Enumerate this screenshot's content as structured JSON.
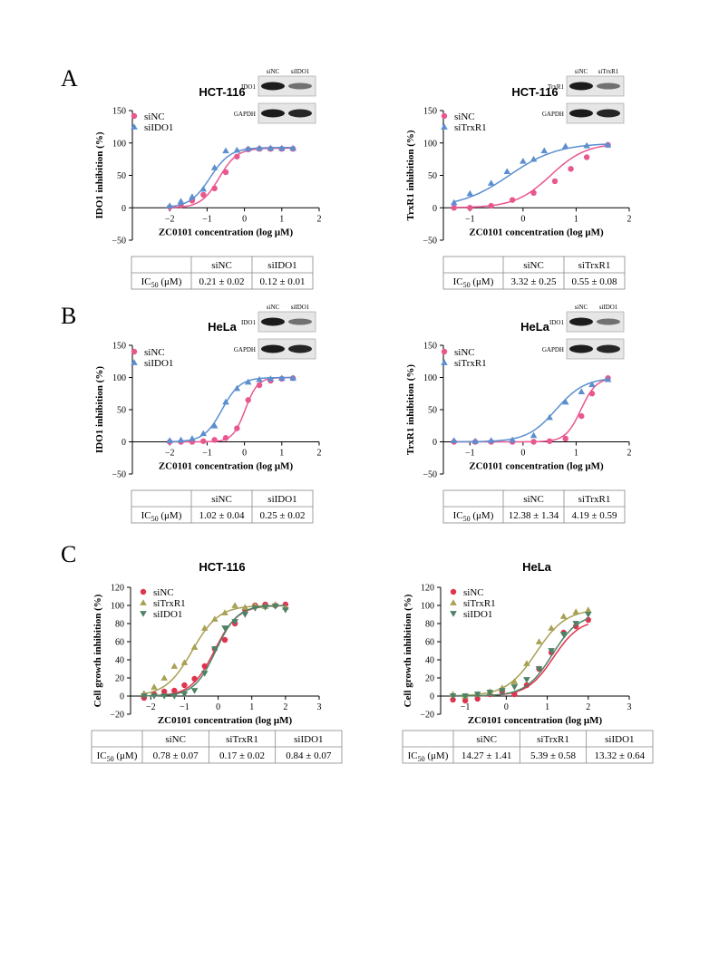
{
  "panel_labels": [
    "A",
    "B",
    "C"
  ],
  "blot_labels": {
    "ido1": "IDO1",
    "trxr1": "TrxR1",
    "gapdh": "GAPDH",
    "sinc": "siNC",
    "siido1": "siIDO1",
    "sitrxr1": "siTrxR1"
  },
  "table_header_label": "IC50 (μM)",
  "colors": {
    "siNC": "#e8578f",
    "siIDO1_AB": "#5b8fcf",
    "siTrxR1_AB": "#5b8fcf",
    "siNC_C": "#e0344e",
    "siTrxR1_C": "#a8a055",
    "siIDO1_C": "#4d8266"
  },
  "chart_data": [
    {
      "id": "A1",
      "type": "scatter",
      "title": "HCT-116",
      "xlabel": "ZC0101 concentration (log μM)",
      "ylabel": "IDO1 inhibition (%)",
      "xlim": [
        -3,
        2
      ],
      "ylim": [
        -50,
        150
      ],
      "xticks": [
        -2,
        -1,
        0,
        1,
        2
      ],
      "yticks": [
        -50,
        0,
        50,
        100,
        150
      ],
      "blot": {
        "cols": [
          "siNC",
          "siIDO1"
        ],
        "rows": [
          "IDO1",
          "GAPDH"
        ]
      },
      "series": [
        {
          "name": "siNC",
          "marker": "circle",
          "color": "#e8578f",
          "logIC50": -0.68,
          "hill": 1.8,
          "x": [
            -2,
            -1.7,
            -1.4,
            -1.1,
            -0.8,
            -0.5,
            -0.2,
            0.1,
            0.4,
            0.7,
            1.0,
            1.3
          ],
          "y": [
            1,
            4,
            11,
            20,
            30,
            55,
            79,
            90,
            91,
            91,
            91,
            91
          ]
        },
        {
          "name": "siIDO1",
          "marker": "triangle",
          "color": "#5b8fcf",
          "logIC50": -0.92,
          "hill": 1.6,
          "x": [
            -2,
            -1.7,
            -1.4,
            -1.1,
            -0.8,
            -0.5,
            -0.2,
            0.1,
            0.4,
            0.7,
            1.0,
            1.3
          ],
          "y": [
            3,
            10,
            17,
            29,
            62,
            88,
            89,
            91,
            92,
            92,
            92,
            92
          ]
        }
      ],
      "table": {
        "columns": [
          "siNC",
          "siIDO1"
        ],
        "values": [
          "0.21 ± 0.02",
          "0.12 ± 0.01"
        ]
      }
    },
    {
      "id": "A2",
      "type": "scatter",
      "title": "HCT-116",
      "xlabel": "ZC0101 concentration (log μM)",
      "ylabel": "TrxR1 inhibition (%)",
      "xlim": [
        -1.5,
        2
      ],
      "ylim": [
        -50,
        150
      ],
      "xticks": [
        -1,
        0,
        1,
        2
      ],
      "yticks": [
        -50,
        0,
        50,
        100,
        150
      ],
      "blot": {
        "cols": [
          "siNC",
          "siTrxR1"
        ],
        "rows": [
          "TrxR1",
          "GAPDH"
        ]
      },
      "series": [
        {
          "name": "siNC",
          "marker": "circle",
          "color": "#e8578f",
          "logIC50": 0.52,
          "hill": 1.3,
          "x": [
            -1.3,
            -1.0,
            -0.6,
            -0.2,
            0.2,
            0.6,
            0.9,
            1.2,
            1.6
          ],
          "y": [
            0,
            0,
            3,
            12,
            23,
            41,
            60,
            78,
            97
          ]
        },
        {
          "name": "siTrxR1",
          "marker": "triangle",
          "color": "#5b8fcf",
          "logIC50": -0.26,
          "hill": 0.95,
          "x": [
            -1.3,
            -1.0,
            -0.6,
            -0.3,
            0.0,
            0.2,
            0.4,
            0.8,
            1.2,
            1.6
          ],
          "y": [
            8,
            22,
            38,
            56,
            72,
            75,
            88,
            95,
            96,
            97
          ]
        }
      ],
      "table": {
        "columns": [
          "siNC",
          "siTrxR1"
        ],
        "values": [
          "3.32 ± 0.25",
          "0.55 ± 0.08"
        ]
      }
    },
    {
      "id": "B1",
      "type": "scatter",
      "title": "HeLa",
      "xlabel": "ZC0101 concentration (log μM)",
      "ylabel": "IDO1 inhibition (%)",
      "xlim": [
        -3,
        2
      ],
      "ylim": [
        -50,
        150
      ],
      "xticks": [
        -2,
        -1,
        0,
        1,
        2
      ],
      "yticks": [
        -50,
        0,
        50,
        100,
        150
      ],
      "blot": {
        "cols": [
          "siNC",
          "siIDO1"
        ],
        "rows": [
          "IDO1",
          "GAPDH"
        ]
      },
      "series": [
        {
          "name": "siNC",
          "marker": "circle",
          "color": "#e8578f",
          "logIC50": 0.02,
          "hill": 2.6,
          "x": [
            -2,
            -1.7,
            -1.4,
            -1.1,
            -0.8,
            -0.5,
            -0.2,
            0.1,
            0.4,
            0.7,
            1.0,
            1.3
          ],
          "y": [
            0,
            0,
            0,
            1,
            3,
            6,
            21,
            65,
            88,
            95,
            98,
            99
          ]
        },
        {
          "name": "siIDO1",
          "marker": "triangle",
          "color": "#5b8fcf",
          "logIC50": -0.6,
          "hill": 1.8,
          "x": [
            -2,
            -1.7,
            -1.4,
            -1.1,
            -0.8,
            -0.5,
            -0.2,
            0.1,
            0.4,
            0.7,
            1.0,
            1.3
          ],
          "y": [
            2,
            3,
            5,
            13,
            25,
            62,
            83,
            93,
            97,
            98,
            99,
            99
          ]
        }
      ],
      "table": {
        "columns": [
          "siNC",
          "siIDO1"
        ],
        "values": [
          "1.02 ± 0.04",
          "0.25 ± 0.02"
        ]
      }
    },
    {
      "id": "B2",
      "type": "scatter",
      "title": "HeLa",
      "xlabel": "ZC0101 concentration (log μM)",
      "ylabel": "TrxR1 inhibition (%)",
      "xlim": [
        -1.5,
        2
      ],
      "ylim": [
        -50,
        150
      ],
      "xticks": [
        -1,
        0,
        1,
        2
      ],
      "yticks": [
        -50,
        0,
        50,
        100,
        150
      ],
      "blot": {
        "cols": [
          "siNC",
          "siIDO1"
        ],
        "rows": [
          "IDO1",
          "GAPDH"
        ]
      },
      "series": [
        {
          "name": "siNC",
          "marker": "circle",
          "color": "#e8578f",
          "logIC50": 1.09,
          "hill": 3.0,
          "x": [
            -1.3,
            -0.9,
            -0.6,
            -0.2,
            0.2,
            0.5,
            0.8,
            1.1,
            1.3,
            1.6
          ],
          "y": [
            0,
            0,
            0,
            0,
            0,
            1,
            5,
            40,
            75,
            99
          ]
        },
        {
          "name": "siTrxR1",
          "marker": "triangle",
          "color": "#5b8fcf",
          "logIC50": 0.62,
          "hill": 1.6,
          "x": [
            -1.3,
            -0.9,
            -0.6,
            -0.2,
            0.2,
            0.5,
            0.8,
            1.1,
            1.3,
            1.6
          ],
          "y": [
            2,
            1,
            2,
            3,
            10,
            38,
            62,
            78,
            89,
            97
          ]
        }
      ],
      "table": {
        "columns": [
          "siNC",
          "siTrxR1"
        ],
        "values": [
          "12.38 ± 1.34",
          "4.19 ± 0.59"
        ]
      }
    },
    {
      "id": "C1",
      "type": "scatter",
      "title": "HCT-116",
      "xlabel": "ZC0101 concentration (log μM)",
      "ylabel": "Cell growth inhibition (%)",
      "xlim": [
        -2.6,
        3
      ],
      "ylim": [
        -20,
        120
      ],
      "xticks": [
        -2,
        -1,
        0,
        1,
        2,
        3
      ],
      "yticks": [
        -20,
        0,
        20,
        40,
        60,
        80,
        100,
        120
      ],
      "series": [
        {
          "name": "siNC",
          "marker": "circle",
          "color": "#e0344e",
          "logIC50": -0.11,
          "hill": 1.25,
          "x": [
            -2.2,
            -1.9,
            -1.6,
            -1.3,
            -1.0,
            -0.7,
            -0.4,
            -0.1,
            0.2,
            0.5,
            0.8,
            1.1,
            1.4,
            1.7,
            2.0
          ],
          "y": [
            -2,
            2,
            5,
            6,
            12,
            19,
            33,
            52,
            62,
            80,
            95,
            100,
            101,
            100,
            101
          ]
        },
        {
          "name": "siTrxR1",
          "marker": "triangle",
          "color": "#a8a055",
          "logIC50": -0.77,
          "hill": 1.1,
          "x": [
            -2.2,
            -1.9,
            -1.6,
            -1.3,
            -1.0,
            -0.7,
            -0.4,
            -0.1,
            0.2,
            0.5,
            0.8,
            1.1,
            1.4,
            1.7,
            2.0
          ],
          "y": [
            3,
            10,
            20,
            33,
            37,
            54,
            75,
            85,
            92,
            100,
            98,
            100,
            99,
            101,
            98
          ]
        },
        {
          "name": "siIDO1",
          "marker": "triangle-down",
          "color": "#4d8266",
          "logIC50": -0.07,
          "hill": 1.35,
          "x": [
            -2.2,
            -1.9,
            -1.6,
            -1.3,
            -1.0,
            -0.7,
            -0.4,
            -0.1,
            0.2,
            0.5,
            0.8,
            1.1,
            1.4,
            1.7,
            2.0
          ],
          "y": [
            0,
            0,
            0,
            0,
            2,
            6,
            25,
            52,
            75,
            82,
            90,
            97,
            98,
            99,
            95
          ]
        }
      ],
      "table": {
        "columns": [
          "siNC",
          "siTrxR1",
          "siIDO1"
        ],
        "values": [
          "0.78 ± 0.07",
          "0.17 ± 0.02",
          "0.84 ± 0.07"
        ]
      }
    },
    {
      "id": "C2",
      "type": "scatter",
      "title": "HeLa",
      "xlabel": "ZC0101 concentration (log μM)",
      "ylabel": "Cell growth inhibition (%)",
      "xlim": [
        -1.6,
        3
      ],
      "ylim": [
        -20,
        120
      ],
      "xticks": [
        -1,
        0,
        1,
        2,
        3
      ],
      "yticks": [
        -20,
        0,
        20,
        40,
        60,
        80,
        100,
        120
      ],
      "series": [
        {
          "name": "siNC",
          "marker": "circle",
          "color": "#e0344e",
          "logIC50": 1.15,
          "hill": 1.35,
          "x": [
            -1.3,
            -1.0,
            -0.7,
            -0.4,
            -0.1,
            0.2,
            0.5,
            0.8,
            1.1,
            1.4,
            1.7,
            2.0
          ],
          "y": [
            -4,
            -5,
            -3,
            2,
            5,
            2,
            12,
            30,
            48,
            70,
            77,
            84
          ]
        },
        {
          "name": "siTrxR1",
          "marker": "triangle",
          "color": "#a8a055",
          "logIC50": 0.73,
          "hill": 1.2,
          "x": [
            -1.3,
            -1.0,
            -0.7,
            -0.4,
            -0.1,
            0.2,
            0.5,
            0.8,
            1.1,
            1.4,
            1.7,
            2.0
          ],
          "y": [
            2,
            0,
            2,
            5,
            9,
            16,
            36,
            60,
            75,
            88,
            93,
            95
          ]
        },
        {
          "name": "siIDO1",
          "marker": "triangle-down",
          "color": "#4d8266",
          "logIC50": 1.12,
          "hill": 1.35,
          "x": [
            -1.3,
            -1.0,
            -0.7,
            -0.4,
            -0.1,
            0.2,
            0.5,
            0.8,
            1.1,
            1.4,
            1.7,
            2.0
          ],
          "y": [
            0,
            0,
            2,
            4,
            6,
            10,
            18,
            30,
            50,
            68,
            80,
            90
          ]
        }
      ],
      "table": {
        "columns": [
          "siNC",
          "siTrxR1",
          "siIDO1"
        ],
        "values": [
          "14.27 ± 1.41",
          "5.39 ± 0.58",
          "13.32 ± 0.64"
        ]
      }
    }
  ]
}
